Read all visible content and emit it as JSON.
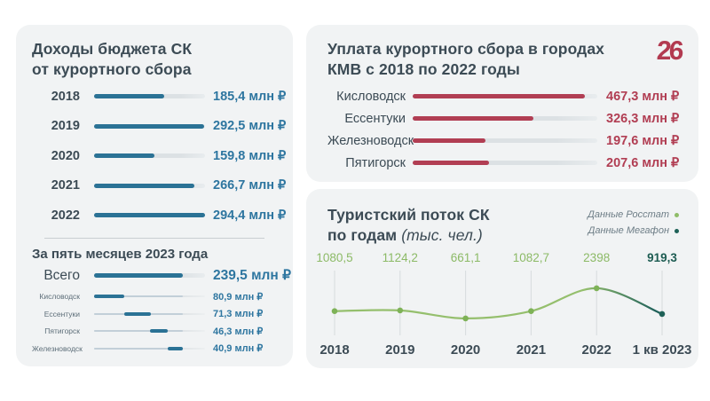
{
  "logo": {
    "text": "26",
    "color": "#b23a50"
  },
  "colors": {
    "panel_bg": "#f1f3f4",
    "heading": "#3c4b55",
    "blue_bar": "#2b7295",
    "blue_value": "#2e76a0",
    "red_bar": "#b13e53",
    "track": "#dce1e4",
    "green_light": "#95bf6d",
    "green_dark": "#1e6157",
    "legend_text": "#6d7d86"
  },
  "chart_data": [
    {
      "id": "budget_by_year",
      "type": "bar",
      "title_lines": [
        "Доходы бюджета СК",
        "от курортного сбора"
      ],
      "orientation": "horizontal",
      "unit": "млн ₽",
      "axis_max": 295,
      "categories": [
        "2018",
        "2019",
        "2020",
        "2021",
        "2022"
      ],
      "values": [
        185.4,
        292.5,
        159.8,
        266.7,
        294.4
      ],
      "display_values": [
        "185,4 млн ₽",
        "292,5 млн ₽",
        "159,8 млн ₽",
        "266,7 млн ₽",
        "294,4 млн ₽"
      ],
      "bar_color": "#2b7295"
    },
    {
      "id": "five_months_2023",
      "type": "bar",
      "title": "За пять месяцев 2023 года",
      "orientation": "horizontal",
      "waterfall": true,
      "unit": "млн ₽",
      "axis_max": 300,
      "total": {
        "label": "Всего",
        "value": 239.5,
        "display": "239,5 млн ₽"
      },
      "categories": [
        "Кисловодск",
        "Ессентуки",
        "Пятигорск",
        "Железноводск"
      ],
      "values": [
        80.9,
        71.3,
        46.3,
        40.9
      ],
      "display_values": [
        "80,9 млн ₽",
        "71,3 млн ₽",
        "46,3 млн ₽",
        "40,9 млн ₽"
      ],
      "bar_color": "#2b7295"
    },
    {
      "id": "kmv_payments",
      "type": "bar",
      "title_lines": [
        "Уплата курортного сбора в городах",
        "КМВ с 2018 по 2022 годы"
      ],
      "orientation": "horizontal",
      "unit": "млн ₽",
      "axis_max": 500,
      "categories": [
        "Кисловодск",
        "Ессентуки",
        "Железноводск",
        "Пятигорск"
      ],
      "values": [
        467.3,
        326.3,
        197.6,
        207.6
      ],
      "display_values": [
        "467,3 млн ₽",
        "326,3 млн ₽",
        "197,6 млн ₽",
        "207,6 млн ₽"
      ],
      "bar_color": "#b13e53"
    },
    {
      "id": "tourist_flow",
      "type": "line",
      "title_lines": [
        "Туристский поток СК",
        "по годам"
      ],
      "units_label": "(тыс. чел.)",
      "categories": [
        "2018",
        "2019",
        "2020",
        "2021",
        "2022",
        "1 кв 2023"
      ],
      "values": [
        1080.5,
        1124.2,
        661.1,
        1082.7,
        2398,
        919.3
      ],
      "display_values": [
        "1080,5",
        "1124,2",
        "661,1",
        "1082,7",
        "2398",
        "919,3"
      ],
      "legend": [
        {
          "label": "Данные Росстат",
          "color": "#8fbd68"
        },
        {
          "label": "Данные Мегафон",
          "color": "#1e6157"
        }
      ],
      "line_color": "#95bf6d",
      "line_end_color": "#20615a",
      "point_color": "#7eb257",
      "last_point_color": "#1e6157",
      "grid": "vertical-ticks"
    }
  ]
}
